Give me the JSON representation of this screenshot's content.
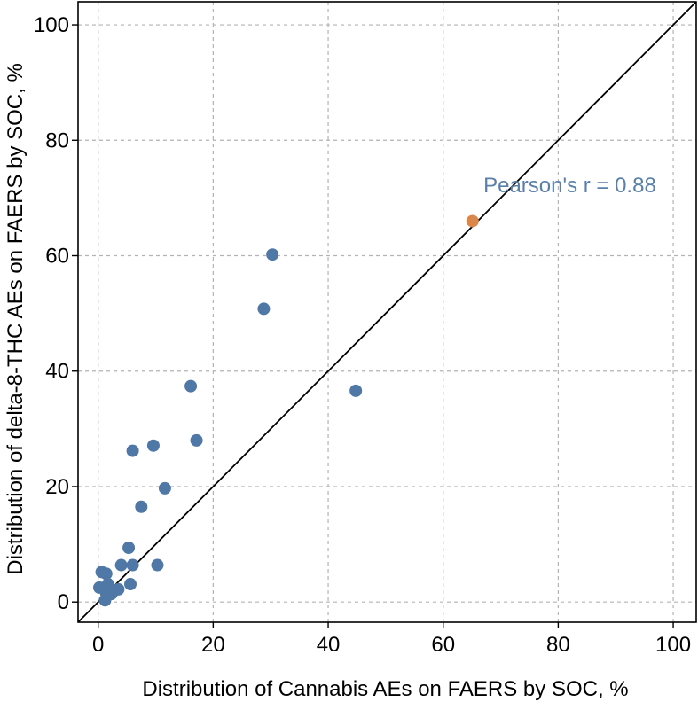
{
  "chart_data": {
    "type": "scatter",
    "title": "",
    "xlabel": "Distribution of Cannabis AEs on FAERS by SOC, %",
    "ylabel": "Distribution of delta-8-THC AEs on FAERS by SOC, %",
    "xlim": [
      -3.5,
      104
    ],
    "ylim": [
      -3.5,
      104
    ],
    "x_ticks": [
      0,
      20,
      40,
      60,
      80,
      100
    ],
    "y_ticks": [
      0,
      20,
      40,
      60,
      80,
      100
    ],
    "x_tick_labels": [
      "0",
      "20",
      "40",
      "60",
      "80",
      "100"
    ],
    "y_tick_labels": [
      "0",
      "20",
      "40",
      "60",
      "80",
      "100"
    ],
    "grid": true,
    "grid_style": "dashed",
    "reference_line": {
      "type": "identity",
      "color": "#000000"
    },
    "annotation": {
      "text": "Pearson's r = 0.88",
      "x": 67,
      "y": 71,
      "color": "#5b80a8"
    },
    "series": [
      {
        "color": "#4f78a6",
        "points": [
          {
            "x": 30.3,
            "y": 60.2
          },
          {
            "x": 28.8,
            "y": 50.8
          },
          {
            "x": 44.8,
            "y": 36.6
          },
          {
            "x": 16.1,
            "y": 37.4
          },
          {
            "x": 17.1,
            "y": 28.0
          },
          {
            "x": 9.6,
            "y": 27.1
          },
          {
            "x": 6.0,
            "y": 26.2
          },
          {
            "x": 11.6,
            "y": 19.7
          },
          {
            "x": 7.5,
            "y": 16.5
          },
          {
            "x": 5.3,
            "y": 9.4
          },
          {
            "x": 4.0,
            "y": 6.4
          },
          {
            "x": 6.0,
            "y": 6.4
          },
          {
            "x": 10.3,
            "y": 6.4
          },
          {
            "x": 5.6,
            "y": 3.1
          },
          {
            "x": 0.6,
            "y": 5.2
          },
          {
            "x": 1.4,
            "y": 4.9
          },
          {
            "x": 0.2,
            "y": 2.5
          },
          {
            "x": 0.9,
            "y": 2.4
          },
          {
            "x": 1.7,
            "y": 3.1
          },
          {
            "x": 2.3,
            "y": 1.4
          },
          {
            "x": 3.5,
            "y": 2.2
          },
          {
            "x": 2.8,
            "y": 2.0
          },
          {
            "x": 1.4,
            "y": 1.5
          },
          {
            "x": 1.2,
            "y": 0.3
          }
        ]
      },
      {
        "color": "#d9874b",
        "points": [
          {
            "x": 65.1,
            "y": 66.0
          }
        ]
      }
    ]
  }
}
